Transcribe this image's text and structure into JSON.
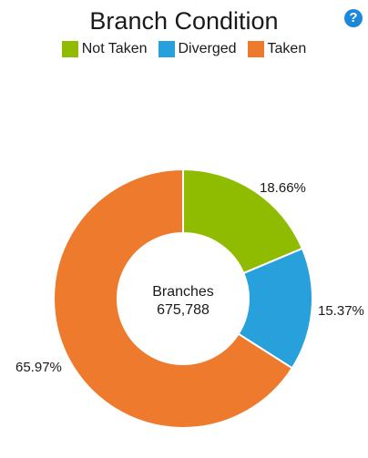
{
  "chart_data": {
    "type": "pie",
    "title": "Branch Condition",
    "categories": [
      "Not Taken",
      "Diverged",
      "Taken"
    ],
    "values": [
      18.66,
      15.37,
      65.97
    ],
    "value_labels": [
      "18.66%",
      "15.37%",
      "65.97%"
    ],
    "colors": [
      "#8fbc00",
      "#27a0dc",
      "#ee7a2e"
    ],
    "center_label": "Branches",
    "center_value": "675,788",
    "donut": true,
    "legend_position": "top"
  },
  "help_icon": "question-circle-icon",
  "help_symbol": "?"
}
